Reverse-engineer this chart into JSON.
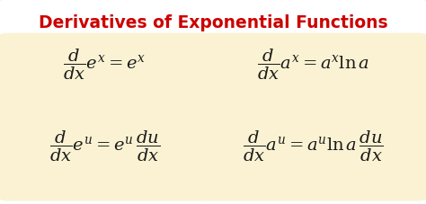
{
  "title": "Derivatives of Exponential Functions",
  "title_color": "#cc0000",
  "title_fontsize": 13.5,
  "bg_color": "#ffffff",
  "box_color": "#faf2d3",
  "formula_color": "#1a1a1a",
  "formula_fontsize": 14,
  "outer_border_color": "#b0b8cc",
  "fig_width": 4.74,
  "fig_height": 2.28,
  "dpi": 100
}
